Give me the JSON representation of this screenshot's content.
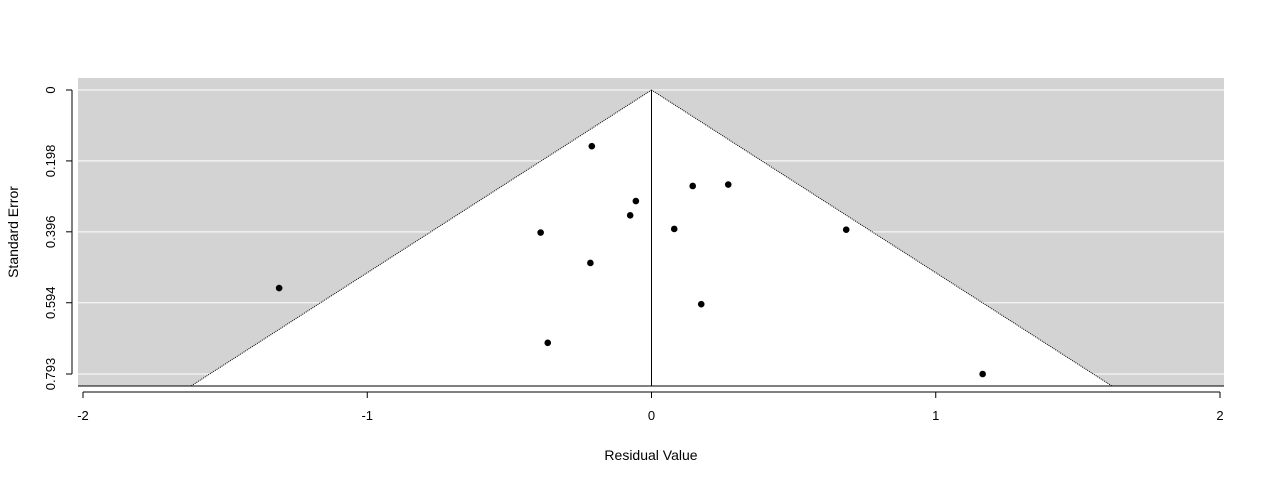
{
  "chart_data": {
    "type": "scatter",
    "subtype": "funnel",
    "title": "",
    "xlabel": "Residual Value",
    "ylabel": "Standard Error",
    "xlim": [
      -2,
      2
    ],
    "ylim": [
      0,
      0.793
    ],
    "y_reversed": true,
    "x_ticks": [
      "-2",
      "-1",
      "0",
      "1",
      "2"
    ],
    "y_ticks": [
      "0",
      "0.198",
      "0.396",
      "0.594",
      "0.793"
    ],
    "grid": "horizontal",
    "funnel_center": 0,
    "funnel_z": 1.96,
    "colors": {
      "outside_region": "#d3d3d3",
      "funnel_region": "#ffffff",
      "gridline": "#ffffff",
      "point": "#000000",
      "axis": "#000000"
    },
    "points": [
      {
        "x": -0.21,
        "y": 0.157
      },
      {
        "x": 0.27,
        "y": 0.264
      },
      {
        "x": 0.145,
        "y": 0.268
      },
      {
        "x": -0.055,
        "y": 0.31
      },
      {
        "x": -0.075,
        "y": 0.35
      },
      {
        "x": 0.08,
        "y": 0.388
      },
      {
        "x": 0.685,
        "y": 0.39
      },
      {
        "x": -0.39,
        "y": 0.398
      },
      {
        "x": -0.215,
        "y": 0.483
      },
      {
        "x": -1.31,
        "y": 0.553
      },
      {
        "x": 0.175,
        "y": 0.598
      },
      {
        "x": -0.365,
        "y": 0.706
      },
      {
        "x": 1.165,
        "y": 0.793
      }
    ]
  }
}
